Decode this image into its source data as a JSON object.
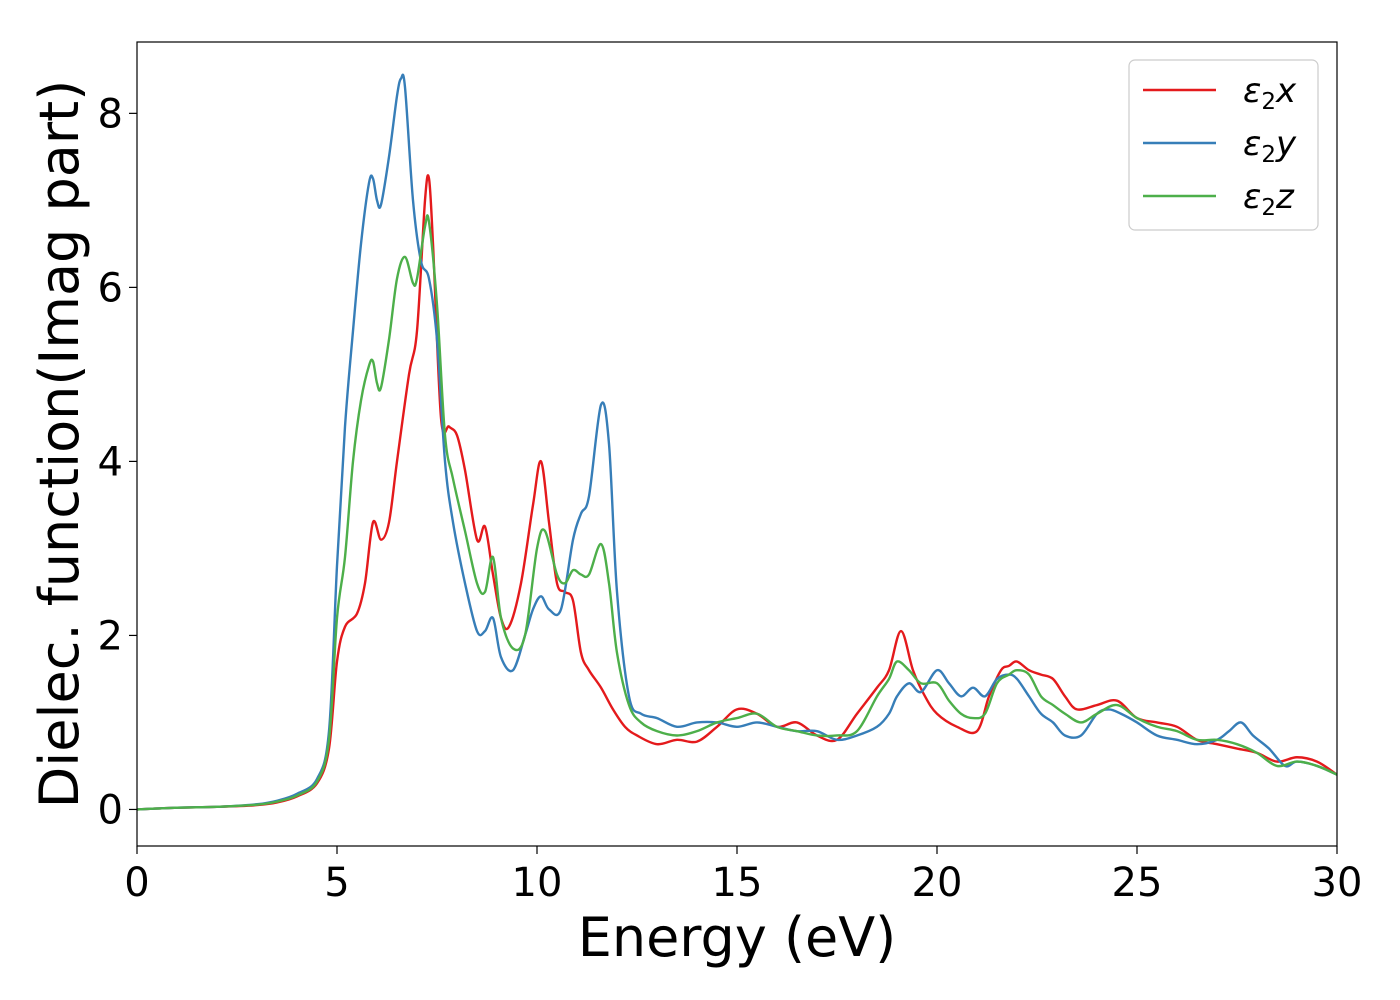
{
  "chart_data": {
    "type": "line",
    "title": "",
    "xlabel": "Energy (eV)",
    "ylabel": "Dielec. function(Imag part)",
    "xlim": [
      0,
      30
    ],
    "ylim": [
      -0.42,
      8.82
    ],
    "xticks": [
      0,
      5,
      10,
      15,
      20,
      25,
      30
    ],
    "yticks": [
      0,
      2,
      4,
      6,
      8
    ],
    "grid": false,
    "legend_position": "top-right",
    "series": [
      {
        "name": "ε₂x",
        "label_base": "ε",
        "label_sub": "2",
        "label_var": "x",
        "color": "#e41a1c",
        "x": [
          0,
          1,
          2,
          3,
          3.5,
          4,
          4.5,
          4.8,
          5.0,
          5.2,
          5.5,
          5.7,
          5.9,
          6.1,
          6.3,
          6.5,
          6.8,
          7.0,
          7.2,
          7.3,
          7.4,
          7.6,
          7.8,
          8.0,
          8.2,
          8.5,
          8.7,
          8.9,
          9.1,
          9.3,
          9.6,
          9.9,
          10.1,
          10.3,
          10.5,
          10.7,
          10.9,
          11.1,
          11.3,
          11.6,
          11.9,
          12.2,
          12.5,
          13.0,
          13.5,
          14.0,
          14.5,
          15.0,
          15.5,
          16.0,
          16.5,
          17.0,
          17.5,
          18.0,
          18.5,
          18.8,
          19.1,
          19.4,
          19.7,
          20.0,
          20.5,
          21.0,
          21.3,
          21.6,
          21.8,
          22.0,
          22.3,
          22.6,
          22.9,
          23.2,
          23.5,
          24.0,
          24.5,
          25.0,
          25.5,
          26.0,
          26.5,
          27.0,
          27.5,
          28.0,
          28.5,
          29.0,
          29.5,
          30.0
        ],
        "values": [
          0,
          0.02,
          0.03,
          0.05,
          0.08,
          0.15,
          0.3,
          0.7,
          1.7,
          2.1,
          2.25,
          2.6,
          3.3,
          3.1,
          3.3,
          4.0,
          5.0,
          5.5,
          7.0,
          7.25,
          6.5,
          4.5,
          4.4,
          4.3,
          3.9,
          3.1,
          3.25,
          2.7,
          2.2,
          2.1,
          2.6,
          3.5,
          4.0,
          3.3,
          2.6,
          2.5,
          2.4,
          1.8,
          1.6,
          1.4,
          1.15,
          0.95,
          0.85,
          0.75,
          0.8,
          0.78,
          0.95,
          1.15,
          1.1,
          0.95,
          1.0,
          0.85,
          0.8,
          1.1,
          1.4,
          1.6,
          2.05,
          1.6,
          1.3,
          1.1,
          0.95,
          0.9,
          1.3,
          1.6,
          1.65,
          1.7,
          1.6,
          1.55,
          1.5,
          1.3,
          1.15,
          1.2,
          1.25,
          1.05,
          1.0,
          0.95,
          0.8,
          0.75,
          0.7,
          0.65,
          0.55,
          0.6,
          0.55,
          0.4
        ]
      },
      {
        "name": "ε₂y",
        "label_base": "ε",
        "label_sub": "2",
        "label_var": "y",
        "color": "#377eb8",
        "x": [
          0,
          1,
          2,
          3,
          3.5,
          4,
          4.5,
          4.8,
          5.0,
          5.2,
          5.4,
          5.6,
          5.8,
          5.9,
          6.0,
          6.1,
          6.3,
          6.5,
          6.6,
          6.7,
          6.9,
          7.1,
          7.3,
          7.5,
          7.7,
          7.9,
          8.2,
          8.5,
          8.7,
          8.9,
          9.1,
          9.4,
          9.7,
          9.9,
          10.1,
          10.3,
          10.6,
          10.9,
          11.1,
          11.3,
          11.6,
          11.8,
          12.0,
          12.3,
          12.6,
          13.0,
          13.5,
          14.0,
          14.5,
          15.0,
          15.5,
          16.0,
          16.5,
          17.0,
          17.5,
          18.0,
          18.5,
          18.8,
          19.0,
          19.3,
          19.6,
          20.0,
          20.3,
          20.6,
          20.9,
          21.2,
          21.5,
          21.8,
          22.0,
          22.3,
          22.6,
          22.9,
          23.2,
          23.6,
          24.0,
          24.3,
          24.6,
          25.0,
          25.5,
          26.0,
          26.5,
          27.0,
          27.3,
          27.6,
          27.9,
          28.3,
          28.7,
          29.0,
          29.5,
          30.0
        ],
        "values": [
          0,
          0.02,
          0.03,
          0.06,
          0.1,
          0.18,
          0.35,
          0.9,
          2.8,
          4.4,
          5.5,
          6.5,
          7.2,
          7.25,
          7.0,
          6.95,
          7.5,
          8.2,
          8.4,
          8.3,
          7.0,
          6.3,
          6.1,
          5.4,
          4.0,
          3.3,
          2.6,
          2.05,
          2.05,
          2.2,
          1.75,
          1.6,
          2.0,
          2.3,
          2.45,
          2.3,
          2.3,
          3.1,
          3.4,
          3.6,
          4.65,
          4.2,
          2.5,
          1.3,
          1.1,
          1.05,
          0.95,
          1.0,
          1.0,
          0.95,
          1.0,
          0.95,
          0.9,
          0.9,
          0.8,
          0.85,
          0.95,
          1.1,
          1.3,
          1.45,
          1.35,
          1.6,
          1.45,
          1.3,
          1.4,
          1.3,
          1.5,
          1.55,
          1.5,
          1.3,
          1.1,
          1.0,
          0.85,
          0.85,
          1.1,
          1.15,
          1.1,
          1.0,
          0.85,
          0.8,
          0.75,
          0.8,
          0.9,
          1.0,
          0.85,
          0.7,
          0.5,
          0.55,
          0.5,
          0.4
        ]
      },
      {
        "name": "ε₂z",
        "label_base": "ε",
        "label_sub": "2",
        "label_var": "z",
        "color": "#4daf4a",
        "x": [
          0,
          1,
          2,
          3,
          3.5,
          4,
          4.5,
          4.8,
          5.0,
          5.2,
          5.4,
          5.6,
          5.8,
          5.9,
          6.0,
          6.1,
          6.3,
          6.5,
          6.7,
          6.9,
          7.0,
          7.2,
          7.3,
          7.5,
          7.7,
          7.9,
          8.2,
          8.5,
          8.7,
          8.9,
          9.1,
          9.4,
          9.7,
          10.0,
          10.2,
          10.5,
          10.7,
          10.9,
          11.1,
          11.3,
          11.6,
          11.8,
          12.0,
          12.3,
          12.6,
          13.0,
          13.5,
          14.0,
          14.5,
          15.0,
          15.5,
          16.0,
          16.5,
          17.0,
          17.5,
          18.0,
          18.5,
          18.8,
          19.0,
          19.3,
          19.6,
          20.0,
          20.3,
          20.6,
          20.9,
          21.2,
          21.5,
          21.8,
          22.0,
          22.3,
          22.6,
          22.9,
          23.2,
          23.6,
          24.0,
          24.5,
          25.0,
          25.5,
          26.0,
          26.5,
          27.0,
          27.5,
          28.0,
          28.5,
          29.0,
          29.5,
          30.0
        ],
        "values": [
          0,
          0.02,
          0.03,
          0.055,
          0.09,
          0.16,
          0.32,
          0.8,
          2.2,
          2.9,
          4.0,
          4.7,
          5.1,
          5.15,
          4.9,
          4.85,
          5.4,
          6.1,
          6.35,
          6.05,
          6.1,
          6.7,
          6.75,
          5.8,
          4.3,
          3.8,
          3.2,
          2.6,
          2.5,
          2.9,
          2.2,
          1.85,
          2.0,
          3.0,
          3.2,
          2.7,
          2.6,
          2.75,
          2.7,
          2.7,
          3.05,
          2.6,
          1.8,
          1.2,
          1.0,
          0.9,
          0.85,
          0.9,
          1.0,
          1.05,
          1.1,
          0.95,
          0.9,
          0.85,
          0.85,
          0.9,
          1.3,
          1.5,
          1.7,
          1.6,
          1.45,
          1.45,
          1.25,
          1.1,
          1.05,
          1.1,
          1.45,
          1.55,
          1.6,
          1.55,
          1.3,
          1.2,
          1.1,
          1.0,
          1.1,
          1.2,
          1.05,
          0.95,
          0.9,
          0.8,
          0.8,
          0.75,
          0.65,
          0.5,
          0.55,
          0.5,
          0.4
        ]
      }
    ]
  }
}
